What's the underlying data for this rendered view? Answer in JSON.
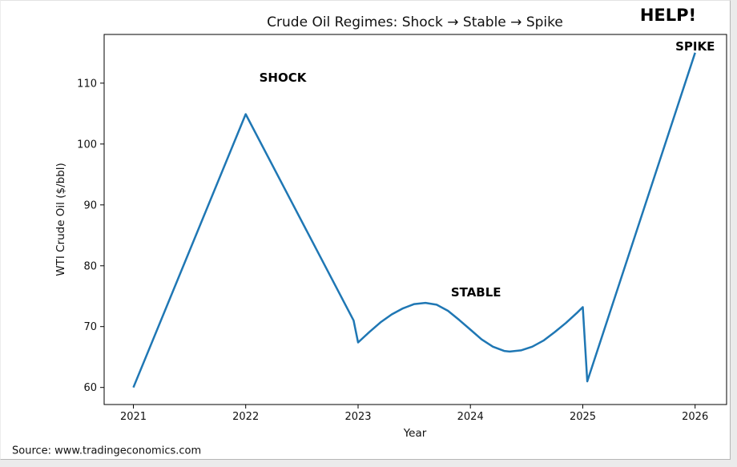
{
  "header": {
    "help_label": "HELP!"
  },
  "chart_data": {
    "type": "line",
    "title": "Crude Oil Regimes: Shock → Stable → Spike",
    "xlabel": "Year",
    "ylabel": "WTI Crude Oil ($/bbl)",
    "x_ticks": [
      "2021",
      "2022",
      "2023",
      "2024",
      "2025",
      "2026"
    ],
    "x_tick_values": [
      2021,
      2022,
      2023,
      2024,
      2025,
      2026
    ],
    "y_ticks": [
      "60",
      "70",
      "80",
      "90",
      "100",
      "110"
    ],
    "y_tick_values": [
      60,
      70,
      80,
      90,
      100,
      110
    ],
    "xlim": [
      2020.74,
      2026.28
    ],
    "ylim": [
      57.2,
      118.0
    ],
    "grid": false,
    "legend": "none",
    "line_color": "#1f77b4",
    "series": [
      {
        "name": "WTI Crude Oil",
        "points": [
          [
            2021.0,
            60.0
          ],
          [
            2022.0,
            104.9
          ],
          [
            2022.96,
            71.0
          ],
          [
            2023.0,
            67.4
          ],
          [
            2023.1,
            69.1
          ],
          [
            2023.2,
            70.7
          ],
          [
            2023.3,
            72.0
          ],
          [
            2023.4,
            73.0
          ],
          [
            2023.5,
            73.7
          ],
          [
            2023.6,
            73.9
          ],
          [
            2023.7,
            73.6
          ],
          [
            2023.8,
            72.6
          ],
          [
            2023.9,
            71.1
          ],
          [
            2024.0,
            69.5
          ],
          [
            2024.1,
            67.9
          ],
          [
            2024.2,
            66.7
          ],
          [
            2024.3,
            66.0
          ],
          [
            2024.35,
            65.9
          ],
          [
            2024.45,
            66.1
          ],
          [
            2024.55,
            66.7
          ],
          [
            2024.65,
            67.7
          ],
          [
            2024.75,
            69.1
          ],
          [
            2024.85,
            70.6
          ],
          [
            2024.95,
            72.3
          ],
          [
            2025.0,
            73.2
          ],
          [
            2025.04,
            61.0
          ],
          [
            2026.0,
            115.0
          ]
        ]
      }
    ],
    "annotations": [
      {
        "text": "SHOCK",
        "x": 2022.33,
        "y": 110.9
      },
      {
        "text": "STABLE",
        "x": 2024.05,
        "y": 75.6
      },
      {
        "text": "SPIKE",
        "x": 2026.0,
        "y": 116.0
      }
    ]
  },
  "footer": {
    "source": "Source: www.tradingeconomics.com"
  }
}
